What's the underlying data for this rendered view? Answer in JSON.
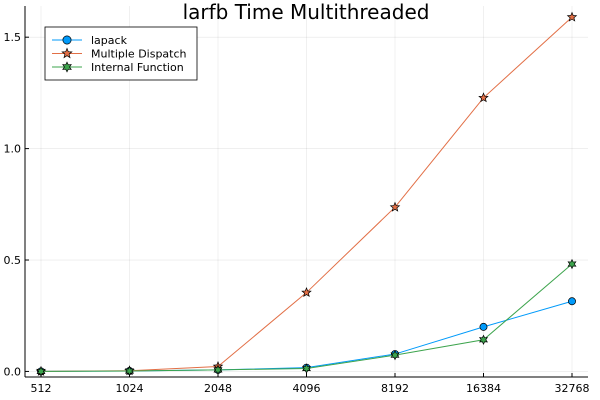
{
  "chart_data": {
    "type": "line",
    "title": "larfb Time Multithreaded",
    "xlabel": "",
    "ylabel": "",
    "x_scale": "log2",
    "x": [
      512,
      1024,
      2048,
      4096,
      8192,
      16384,
      32768
    ],
    "x_tick_labels": [
      "512",
      "1024",
      "2048",
      "4096",
      "8192",
      "16384",
      "32768"
    ],
    "y_ticks": [
      0.0,
      0.5,
      1.0,
      1.5
    ],
    "y_tick_labels": [
      "0.0",
      "0.5",
      "1.0",
      "1.5"
    ],
    "ylim": [
      -0.025,
      1.64
    ],
    "grid": true,
    "legend_position": "top-left",
    "series": [
      {
        "name": "lapack",
        "color": "#009AFA",
        "marker": "circle",
        "values": [
          0.0,
          0.002,
          0.007,
          0.017,
          0.078,
          0.2,
          0.315
        ]
      },
      {
        "name": "Multiple Dispatch",
        "color": "#E26F46",
        "marker": "star5",
        "values": [
          0.0,
          0.003,
          0.022,
          0.354,
          0.737,
          1.228,
          1.59
        ]
      },
      {
        "name": "Internal Function",
        "color": "#3DA44D",
        "marker": "star6",
        "values": [
          0.0,
          0.002,
          0.007,
          0.013,
          0.073,
          0.142,
          0.482
        ]
      }
    ]
  }
}
